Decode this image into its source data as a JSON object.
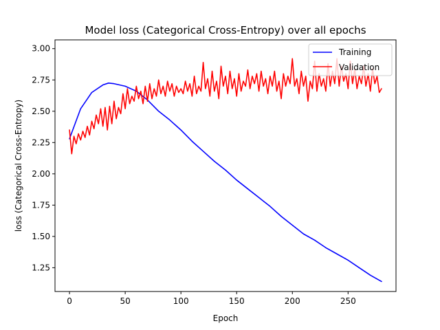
{
  "chart_data": {
    "type": "line",
    "title": "Model loss (Categorical Cross-Entropy) over all epochs",
    "xlabel": "Epoch",
    "ylabel": "loss (Categorical Cross-Entropy)",
    "xlim": [
      -13,
      293
    ],
    "ylim": [
      1.06,
      3.07
    ],
    "x_ticks": [
      0,
      50,
      100,
      150,
      200,
      250
    ],
    "x_tick_labels": [
      "0",
      "50",
      "100",
      "150",
      "200",
      "250"
    ],
    "y_ticks": [
      1.25,
      1.5,
      1.75,
      2.0,
      2.25,
      2.5,
      2.75,
      3.0
    ],
    "y_tick_labels": [
      "1.25",
      "1.50",
      "1.75",
      "2.00",
      "2.25",
      "2.50",
      "2.75",
      "3.00"
    ],
    "grid": false,
    "legend": {
      "placement": "top-right"
    },
    "series": [
      {
        "name": "Training",
        "color": "#0000ff",
        "x": [
          0,
          10,
          20,
          30,
          35,
          40,
          50,
          60,
          70,
          80,
          90,
          100,
          110,
          120,
          130,
          140,
          150,
          160,
          170,
          180,
          190,
          200,
          210,
          220,
          230,
          240,
          250,
          260,
          270,
          280
        ],
        "y": [
          2.28,
          2.52,
          2.65,
          2.71,
          2.725,
          2.72,
          2.7,
          2.66,
          2.59,
          2.5,
          2.43,
          2.35,
          2.26,
          2.18,
          2.1,
          2.03,
          1.95,
          1.88,
          1.81,
          1.74,
          1.66,
          1.59,
          1.52,
          1.47,
          1.41,
          1.36,
          1.31,
          1.25,
          1.19,
          1.14
        ]
      },
      {
        "name": "Validation",
        "color": "#ff0000",
        "x": [
          0,
          2,
          4,
          6,
          8,
          10,
          12,
          14,
          16,
          18,
          20,
          22,
          24,
          26,
          28,
          30,
          32,
          34,
          36,
          38,
          40,
          42,
          44,
          46,
          48,
          50,
          52,
          54,
          56,
          58,
          60,
          62,
          64,
          66,
          68,
          70,
          72,
          74,
          76,
          78,
          80,
          82,
          84,
          86,
          88,
          90,
          92,
          94,
          96,
          98,
          100,
          102,
          104,
          106,
          108,
          110,
          112,
          114,
          116,
          118,
          120,
          122,
          124,
          126,
          128,
          130,
          132,
          134,
          136,
          138,
          140,
          142,
          144,
          146,
          148,
          150,
          152,
          154,
          156,
          158,
          160,
          162,
          164,
          166,
          168,
          170,
          172,
          174,
          176,
          178,
          180,
          182,
          184,
          186,
          188,
          190,
          192,
          194,
          196,
          198,
          200,
          202,
          204,
          206,
          208,
          210,
          212,
          214,
          216,
          218,
          220,
          222,
          224,
          226,
          228,
          230,
          232,
          234,
          236,
          238,
          240,
          242,
          244,
          246,
          248,
          250,
          252,
          254,
          256,
          258,
          260,
          262,
          264,
          266,
          268,
          270,
          272,
          274,
          276,
          278,
          280
        ],
        "y": [
          2.35,
          2.16,
          2.3,
          2.24,
          2.32,
          2.27,
          2.34,
          2.29,
          2.38,
          2.31,
          2.42,
          2.36,
          2.47,
          2.4,
          2.52,
          2.38,
          2.53,
          2.35,
          2.54,
          2.4,
          2.58,
          2.44,
          2.53,
          2.48,
          2.64,
          2.52,
          2.68,
          2.56,
          2.62,
          2.58,
          2.7,
          2.6,
          2.66,
          2.56,
          2.7,
          2.58,
          2.72,
          2.6,
          2.68,
          2.62,
          2.75,
          2.64,
          2.7,
          2.62,
          2.74,
          2.66,
          2.72,
          2.62,
          2.7,
          2.65,
          2.68,
          2.64,
          2.74,
          2.66,
          2.72,
          2.62,
          2.78,
          2.64,
          2.7,
          2.66,
          2.89,
          2.68,
          2.76,
          2.62,
          2.82,
          2.66,
          2.74,
          2.6,
          2.86,
          2.7,
          2.78,
          2.64,
          2.82,
          2.68,
          2.76,
          2.62,
          2.8,
          2.66,
          2.74,
          2.7,
          2.83,
          2.68,
          2.78,
          2.72,
          2.8,
          2.66,
          2.82,
          2.7,
          2.76,
          2.64,
          2.78,
          2.7,
          2.82,
          2.66,
          2.74,
          2.6,
          2.8,
          2.7,
          2.78,
          2.72,
          2.92,
          2.7,
          2.76,
          2.64,
          2.82,
          2.7,
          2.78,
          2.58,
          2.74,
          2.68,
          2.9,
          2.66,
          2.8,
          2.7,
          2.76,
          2.66,
          2.88,
          2.7,
          2.82,
          2.72,
          2.92,
          2.7,
          2.86,
          2.74,
          2.8,
          2.68,
          2.9,
          2.72,
          2.84,
          2.68,
          2.78,
          2.72,
          2.86,
          2.7,
          2.8,
          2.66,
          2.84,
          2.72,
          2.78,
          2.65,
          2.68
        ]
      }
    ]
  }
}
